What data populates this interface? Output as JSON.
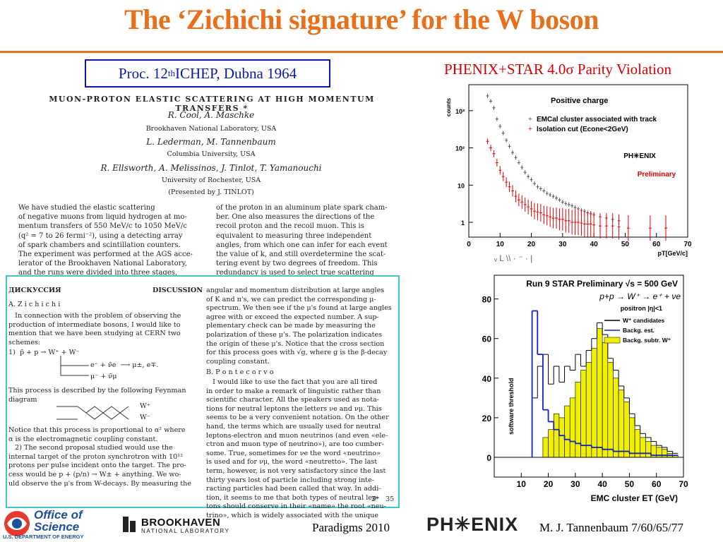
{
  "slide": {
    "title": "The ‘Zichichi signature’ for the W boson",
    "cite_prefix": "Proc. 12",
    "cite_sup": "th",
    "cite_suffix": " ICHEP, Dubna 1964",
    "phenix_header": "PHENIX+STAR 4.0σ Parity Violation"
  },
  "paper": {
    "title": "MUON-PROTON ELASTIC SCATTERING AT HIGH MOMENTUM TRANSFERS *",
    "authors1": "R. Cool, A. Maschke",
    "inst1": "Brookhaven National Laboratory, USA",
    "authors2": "L. Lederman, M. Tannenbaum",
    "inst2": "Columbia University, USA",
    "authors3": "R. Ellsworth, A. Melissinos, J. Tinlot, T. Yamanouchi",
    "inst3": "University of Rochester, USA",
    "presented": "(Presented by J. TINLOT)",
    "col_left": "We have studied the elastic scattering\nof negative muons from liquid hydrogen at mo-\nmentum transfers of 550 MeV/c to 1050 MeV/c\n(q² = 7 to 26 fermi⁻²), using a detecting array\nof spark chambers and scintillation counters.\nThe experiment was performed at the AGS acce-\nlerator of the Brookhaven National Laboratory,\nand the runs were divided into three stages,",
    "col_right": "of the proton in an aluminum plate spark cham-\nber. One also measures the directions of the\nrecoil proton and the recoil muon. This is\nequivalent to measuring three independent\nangles, from which one can infer for each event\nthe value of k, and still overdetermine the scat-\ntering event by two degrees of freedom. This\nredundancy is used to select true scattering"
  },
  "discussion": {
    "heading_ru": "ДИСКУССИЯ",
    "heading_en": "DISCUSSION",
    "speaker1": "A. Z i c h i c h i",
    "left_body": "   In connection with the problem of observing the\nproduction of intermediate bosons, I would like to\nmention that we have been studying at CERN two\nschemes:",
    "eq1": "1)  p̄ + p → W⁺ + W⁻",
    "eq1b": "e⁻ + ν̄e  ⟶ μ±, e∓.",
    "eq1c": "μ⁻ + ν̄μ",
    "left_body2": "This process is described by the following Feynman\ndiagram",
    "feyn_top": "W⁺",
    "feyn_bot": "W⁻",
    "left_body3": "Notice that this process is proportional to α² where\nα is the electromagnetic coupling constant.\n   2) The second proposal studied would use the\ninternal target of the proton synchrotron with 10¹²\nprotons per pulse incident onto the target. The pro-\ncess would be p + (p/n) → W± + anything. We wo-\nuld observe the μ's from W-decays. By measuring the",
    "right_body": "angular and momentum distribution at large angles\nof K and π's, we can predict the corresponding μ-\nspectrum. We then see if the μ's found at large angles\nagree with or exceed the expected number. A sup-\nplementary check can be made by measuring the\npolarization of these μ's. The polarization indicates\nthe origin of these μ's. Notice that the cross section\nfor this process goes with √g, where g is the β-decay\ncoupling constant.",
    "speaker2": "B. P o n t e c o r v o",
    "right_body2": "   I would like to use the fact that you are all tired\nin order to make a remark of linguistic rather than\nscientific character. All the speakers used as nota-\ntions for neutral leptons the letters νe and νμ. This\nseems to be a very convenient notation. On the other\nhand, the terms which are usually used for neutral\nleptons-electron and muon neutrinos (and even «ele-\nctron and muon type of neutrino»), are too cumber-\nsome. True, sometimes for νe the word «neutrino»\nis used and for νμ, the word «neutretto». The last\nterm, however, is not very satisfactory since the last\nthirty years lost of particle including strong inte-\nracting particles had been called that way. In addi-\ntion, it seems to me that both types of neutral lep-\ntons should conserve in their «name» the root «neu-\ntrino», which is widely associated with the unique",
    "page_no": "3*   35"
  },
  "footer": {
    "office_line1": "Office of",
    "office_line2": "Science",
    "office_line3": "U.S. DEPARTMENT OF ENERGY",
    "bnl_line1": "BROOKHAVEN",
    "bnl_line2": "NATIONAL LABORATORY",
    "event": "Paradigms 2010",
    "phenix_logo": "PH✳ENIX",
    "author_page": "M. J. Tannenbaum   7/60/65/77"
  },
  "chart_data": [
    {
      "type": "scatter",
      "title": "Positive charge",
      "xlabel": "pT[GeV/c]",
      "ylabel": "counts",
      "xlim": [
        0,
        70
      ],
      "ylim_log": [
        0.4,
        5000
      ],
      "log_y": true,
      "xticks": [
        "0",
        "10",
        "20",
        "30",
        "40",
        "50",
        "60",
        "70"
      ],
      "yticks": [
        "1",
        "10",
        "10²",
        "10³"
      ],
      "legend": [
        "EMCal cluster associated with track",
        "Isolation cut (Econe<2GeV)"
      ],
      "annotation_logo": "PH✳ENIX",
      "annotation": "Preliminary",
      "axis_strip": "ᵥ  L  \\\\   ·   ⁻   ·   |",
      "colors": {
        "series1": "#555555",
        "series2": "#e00000"
      },
      "series": [
        {
          "name": "EMCal cluster associated with track",
          "x": [
            6,
            7,
            8,
            9,
            10,
            11,
            12,
            13,
            14,
            15,
            16,
            17,
            18,
            19,
            20,
            21,
            22,
            23,
            24,
            25,
            26,
            27,
            28,
            29,
            30,
            31,
            32,
            33,
            34,
            35,
            36,
            37,
            38,
            39,
            40,
            42,
            44,
            46,
            48
          ],
          "y": [
            2500,
            1800,
            1200,
            600,
            380,
            250,
            160,
            110,
            75,
            55,
            40,
            30,
            22,
            17,
            14,
            11,
            9,
            8,
            7,
            6,
            5.5,
            5,
            4.5,
            4,
            3.5,
            3.2,
            3,
            2.8,
            2.5,
            2.3,
            2.1,
            2,
            1.8,
            1.7,
            1.6,
            1.4,
            1.3,
            1.2,
            1.1
          ]
        },
        {
          "name": "Isolation cut (Econe<2GeV)",
          "x": [
            6,
            7,
            8,
            9,
            10,
            11,
            12,
            13,
            14,
            15,
            16,
            17,
            18,
            19,
            20,
            21,
            22,
            23,
            24,
            25,
            26,
            27,
            28,
            29,
            30,
            31,
            32,
            33,
            34,
            35,
            36,
            37,
            38,
            39,
            40,
            42,
            44,
            46,
            48,
            51,
            58,
            63
          ],
          "y": [
            150,
            100,
            70,
            40,
            25,
            17,
            12,
            9,
            7,
            5,
            4,
            3.5,
            3,
            2.6,
            2.3,
            2,
            1.9,
            1.8,
            1.6,
            1.5,
            1.4,
            1.3,
            1.3,
            1.2,
            1.2,
            1.1,
            1.1,
            1,
            1,
            1,
            0.95,
            0.9,
            0.9,
            0.9,
            0.85,
            0.8,
            0.8,
            0.8,
            0.75,
            0.7,
            0.7,
            0.7
          ]
        }
      ]
    },
    {
      "type": "bar",
      "title": "Run 9 STAR Preliminary √s = 500 GeV",
      "reaction": "p+p → W⁺ → e⁺ + νe",
      "cut_label": "positron |η|<1",
      "threshold_label": "software threshold",
      "xlabel": "EMC cluster  ET (GeV)",
      "xlim": [
        0,
        70
      ],
      "ylim": [
        -10,
        92
      ],
      "xticks": [
        "10",
        "20",
        "30",
        "40",
        "50",
        "60",
        "70"
      ],
      "yticks": [
        "0",
        "20",
        "40",
        "60",
        "80"
      ],
      "legend": [
        "W⁺ candidates",
        "Backg. est.",
        "Backg. subtr. W⁺"
      ],
      "colors": {
        "candidates": "#000000",
        "backg": "#1020d0",
        "subtr": "#f0f000"
      },
      "bin_edges": [
        14,
        16,
        18,
        20,
        22,
        24,
        26,
        28,
        30,
        32,
        34,
        36,
        38,
        40,
        42,
        44,
        46,
        48,
        50,
        52,
        54,
        56,
        58,
        60,
        62,
        64,
        66,
        68
      ],
      "series": [
        {
          "name": "W⁺ candidates",
          "values": [
            30,
            46,
            52,
            37,
            46,
            38,
            46,
            44,
            52,
            46,
            54,
            60,
            68,
            62,
            50,
            44,
            36,
            30,
            22,
            16,
            12,
            10,
            8,
            6,
            5,
            3,
            2
          ]
        },
        {
          "name": "Backg. est.",
          "values": [
            74,
            52,
            24,
            18,
            14,
            11,
            9,
            8,
            7,
            6,
            6,
            5,
            5,
            4,
            4,
            3,
            3,
            3,
            2,
            2,
            2,
            2,
            1,
            1,
            1,
            1,
            1
          ]
        },
        {
          "name": "Backg. subtr. W⁺",
          "values": [
            0,
            0,
            10,
            14,
            22,
            20,
            26,
            30,
            38,
            44,
            48,
            55,
            65,
            58,
            48,
            40,
            34,
            28,
            20,
            14,
            10,
            8,
            6,
            5,
            4,
            2,
            1
          ]
        }
      ]
    }
  ]
}
